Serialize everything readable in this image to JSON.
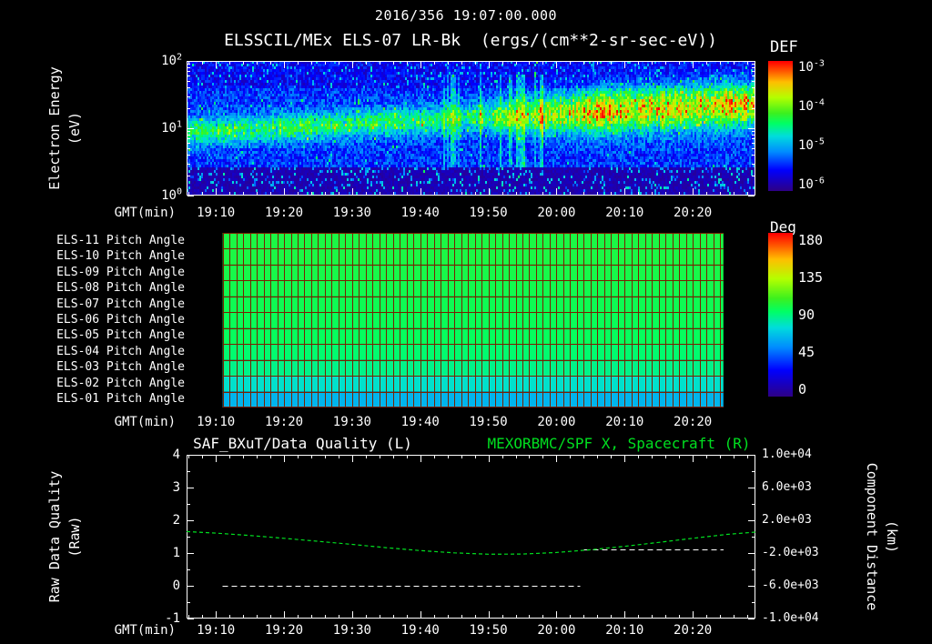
{
  "header": {
    "datetime": "2016/356 19:07:00.000"
  },
  "colors": {
    "background": "#000000",
    "text": "#ffffff",
    "accent_green": "#00e020",
    "axis": "#ffffff",
    "pitch_grid": "#7a2000"
  },
  "colormap_stops": [
    [
      0.0,
      "#2d0087"
    ],
    [
      0.16,
      "#0000ff"
    ],
    [
      0.3,
      "#008cff"
    ],
    [
      0.42,
      "#00dcdc"
    ],
    [
      0.52,
      "#00ff64"
    ],
    [
      0.6,
      "#3cf01e"
    ],
    [
      0.72,
      "#b4ff00"
    ],
    [
      0.84,
      "#ffbe00"
    ],
    [
      0.93,
      "#ff5000"
    ],
    [
      1.0,
      "#ff0000"
    ]
  ],
  "time_axis": {
    "label": "GMT(min)",
    "reference_hour": "19:00",
    "domain_minutes": [
      5.7,
      89.2
    ],
    "ticks": [
      {
        "label": "19:10",
        "minute": 10
      },
      {
        "label": "19:20",
        "minute": 20
      },
      {
        "label": "19:30",
        "minute": 30
      },
      {
        "label": "19:40",
        "minute": 40
      },
      {
        "label": "19:50",
        "minute": 50
      },
      {
        "label": "20:00",
        "minute": 60
      },
      {
        "label": "20:10",
        "minute": 70
      },
      {
        "label": "20:20",
        "minute": 80
      }
    ]
  },
  "chart_data": [
    {
      "id": "electron-spectrogram",
      "type": "heatmap",
      "title": "ELSSCIL/MEx ELS-07 LR-Bk  (ergs/(cm**2-sr-sec-eV))",
      "ylabel": "Electron Energy",
      "ylabel_units": "(eV)",
      "y_scale": "log",
      "y_tick_exponents": [
        2,
        1,
        0
      ],
      "colorbar": {
        "label": "DEF",
        "tick_exponents": [
          -3,
          -4,
          -5,
          -6
        ]
      },
      "content_summary": {
        "background_flux_exp": -5.4,
        "enhanced_band": {
          "energy_ev_start": 9,
          "energy_ev_end": 23,
          "flux_exp_left": -4.4,
          "flux_exp_right": -3.7
        },
        "low_energy_dark_below_ev": 2.6,
        "vertical_streaks_gmt": [
          "19:48",
          "19:57"
        ]
      }
    },
    {
      "id": "pitch-angles",
      "type": "heatmap",
      "data_window_minutes": [
        11,
        84.5
      ],
      "colorbar": {
        "label": "Deg",
        "ticks": [
          180,
          135,
          90,
          45,
          0
        ],
        "range": [
          0,
          180
        ]
      },
      "rows": [
        {
          "label": "ELS-11 Pitch Angle",
          "deg": 100
        },
        {
          "label": "ELS-10 Pitch Angle",
          "deg": 100
        },
        {
          "label": "ELS-09 Pitch Angle",
          "deg": 99
        },
        {
          "label": "ELS-08 Pitch Angle",
          "deg": 98
        },
        {
          "label": "ELS-07 Pitch Angle",
          "deg": 97
        },
        {
          "label": "ELS-06 Pitch Angle",
          "deg": 96
        },
        {
          "label": "ELS-05 Pitch Angle",
          "deg": 95
        },
        {
          "label": "ELS-04 Pitch Angle",
          "deg": 92
        },
        {
          "label": "ELS-03 Pitch Angle",
          "deg": 88
        },
        {
          "label": "ELS-02 Pitch Angle",
          "deg": 78
        },
        {
          "label": "ELS-01 Pitch Angle",
          "deg": 65
        }
      ]
    },
    {
      "id": "quality-and-distance",
      "type": "line",
      "title_left": "SAF_BXuT/Data Quality (L)",
      "title_right": "MEXORBMC/SPF X, Spacecraft (R)",
      "left_axis": {
        "label": "Raw Data Quality",
        "units": "(Raw)",
        "ticks": [
          4,
          3,
          2,
          1,
          0,
          -1
        ],
        "range": [
          -1,
          4
        ]
      },
      "right_axis": {
        "label": "Component Distance",
        "units": "(km)",
        "ticks": [
          "1.0e+04",
          "6.0e+03",
          "2.0e+03",
          "-2.0e+03",
          "-6.0e+03",
          "-1.0e+04"
        ],
        "range": [
          -10000,
          10000
        ]
      },
      "series": [
        {
          "name": "SAF_BXuT/Data Quality",
          "axis": "left",
          "color": "#ffffff",
          "line_style": "dashed",
          "segments": [
            {
              "points": [
                [
                  11,
                  0
                ],
                [
                  63.5,
                  0
                ]
              ]
            },
            {
              "points": [
                [
                  64,
                  1.1
                ],
                [
                  84.5,
                  1.1
                ]
              ]
            }
          ]
        },
        {
          "name": "MEXORBMC/SPF X, Spacecraft",
          "axis": "right",
          "color": "#00e020",
          "line_style": "dashed",
          "points": [
            [
              5.7,
              620
            ],
            [
              10,
              430
            ],
            [
              15,
              140
            ],
            [
              20,
              -200
            ],
            [
              25,
              -570
            ],
            [
              30,
              -950
            ],
            [
              35,
              -1340
            ],
            [
              40,
              -1700
            ],
            [
              45,
              -1980
            ],
            [
              50,
              -2140
            ],
            [
              55,
              -2120
            ],
            [
              60,
              -1930
            ],
            [
              65,
              -1600
            ],
            [
              70,
              -1180
            ],
            [
              75,
              -700
            ],
            [
              80,
              -200
            ],
            [
              85,
              280
            ],
            [
              89.2,
              560
            ]
          ]
        }
      ]
    }
  ]
}
